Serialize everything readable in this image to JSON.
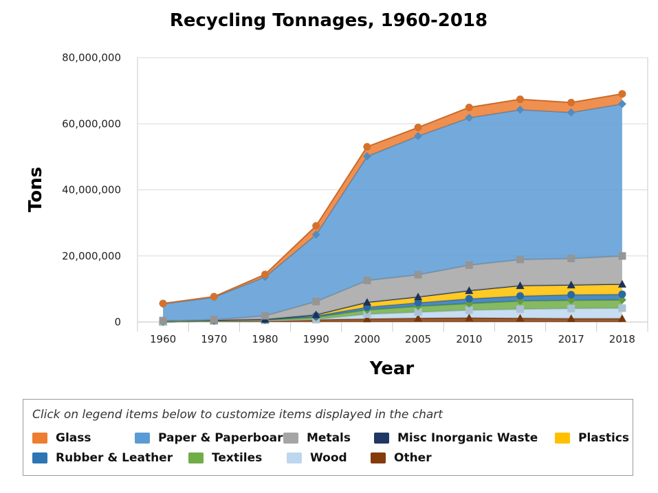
{
  "chart_data": {
    "type": "area",
    "stacked": true,
    "title": "Recycling Tonnages, 1960-2018",
    "xlabel": "Year",
    "ylabel": "Tons",
    "categories": [
      "1960",
      "1970",
      "1980",
      "1990",
      "2000",
      "2005",
      "2010",
      "2015",
      "2017",
      "2018"
    ],
    "ylim": [
      0,
      80000000
    ],
    "yticks": [
      0,
      20000000,
      40000000,
      60000000,
      80000000
    ],
    "ytick_labels": [
      "0",
      "20,000,000",
      "40,000,000",
      "60,000,000",
      "80,000,000"
    ],
    "grid": true,
    "legend_position": "bottom",
    "legend_hint": "Click on legend items below to customize items displayed in the chart",
    "series": [
      {
        "name": "Other",
        "color": "#843C0C",
        "marker": "triangle",
        "values": [
          0,
          300000,
          500000,
          700000,
          1000000,
          1200000,
          1300000,
          1200000,
          1100000,
          1100000
        ]
      },
      {
        "name": "Wood",
        "color": "#BDD7EE",
        "marker": "square",
        "values": [
          0,
          0,
          0,
          130000,
          1400000,
          1800000,
          2300000,
          2700000,
          3000000,
          3100000
        ]
      },
      {
        "name": "Textiles",
        "color": "#70AD47",
        "marker": "diamond",
        "values": [
          50000,
          60000,
          160000,
          660000,
          1300000,
          1800000,
          2000000,
          2500000,
          2500000,
          2500000
        ]
      },
      {
        "name": "Rubber & Leather",
        "color": "#2E75B6",
        "marker": "circle",
        "values": [
          330000,
          250000,
          130000,
          370000,
          820000,
          1050000,
          1440000,
          1500000,
          1650000,
          1700000
        ]
      },
      {
        "name": "Plastics",
        "color": "#FFC000",
        "marker": "triangle",
        "values": [
          0,
          0,
          20000,
          370000,
          1480000,
          1780000,
          2500000,
          3140000,
          3000000,
          3090000
        ]
      },
      {
        "name": "Misc Inorganic Waste",
        "color": "#1F3864",
        "marker": "triangle",
        "values": [
          0,
          0,
          0,
          0,
          0,
          0,
          0,
          0,
          0,
          0
        ]
      },
      {
        "name": "Metals",
        "color": "#A5A5A5",
        "marker": "square",
        "values": [
          50000,
          150000,
          1100000,
          4000000,
          6600000,
          6700000,
          7700000,
          7900000,
          8000000,
          8500000
        ]
      },
      {
        "name": "Paper & Paperboard",
        "color": "#5B9BD5",
        "marker": "diamond",
        "values": [
          5080000,
          6770000,
          11740000,
          20230000,
          37550000,
          41960000,
          44570000,
          45320000,
          44170000,
          46000000
        ]
      },
      {
        "name": "Glass",
        "color": "#ED7D31",
        "marker": "circle",
        "values": [
          100000,
          160000,
          750000,
          2630000,
          2880000,
          2590000,
          3130000,
          3140000,
          3000000,
          3060000
        ]
      }
    ]
  },
  "legend": {
    "rows": [
      [
        "Glass",
        "Paper & Paperboard",
        "Metals",
        "Misc Inorganic Waste",
        "Plastics"
      ],
      [
        "Rubber & Leather",
        "Textiles",
        "Wood",
        "Other"
      ]
    ]
  }
}
